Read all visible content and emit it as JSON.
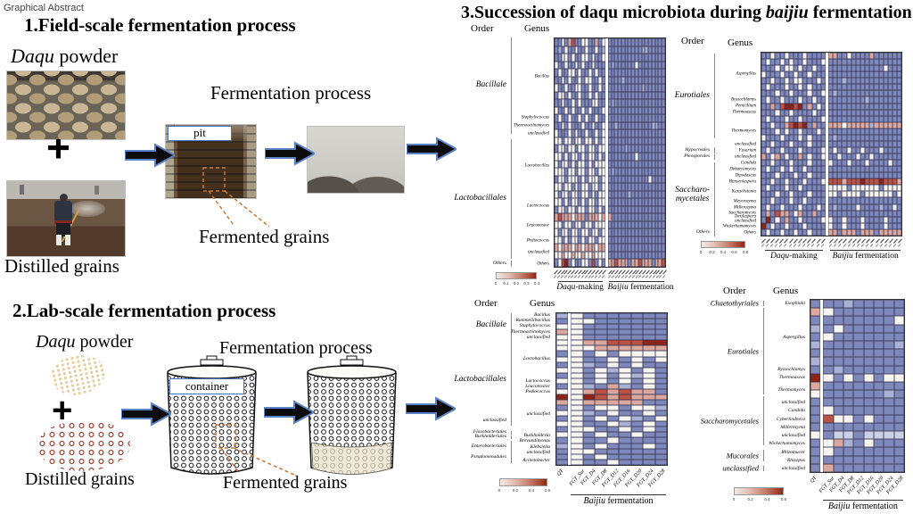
{
  "page_label": "Graphical Abstract",
  "colors": {
    "arrow_outline": "#5b83c8",
    "dashed_annotation": "#c8793a",
    "label_box_border": "#4a76b8",
    "heatmap_blue": "#7e88bb",
    "heatmap_red": "#bb5243"
  },
  "field_section": {
    "heading": "1.Field-scale fermentation process",
    "daqu_italic": "Daqu",
    "daqu_rest": " powder",
    "plus": "+",
    "distilled": "Distilled grains",
    "fermentation": "Fermentation process",
    "pit": "pit",
    "fermented": "Fermented grains"
  },
  "lab_section": {
    "heading": "2.Lab-scale fermentation process",
    "daqu_italic": "Daqu",
    "daqu_rest": " powder",
    "plus": "+",
    "distilled": "Distilled grains",
    "fermentation": "Fermentation process",
    "container": "container",
    "fermented": "Fermented grains"
  },
  "succession": {
    "prefix": "3.Succession of daqu microbiota during ",
    "italic": "baijiu",
    "suffix": " fermentation"
  },
  "palette": {
    "b": "#7e88bb",
    "l": "#a9b1d4",
    "e": "#ccd1e5",
    "w": "#f7f5f0",
    "p": "#dca89e",
    "r": "#bb5243",
    "d": "#8f2315"
  },
  "chart_data": [
    {
      "type": "heatmap",
      "name": "field-scale bacterial community",
      "order_header": "Order",
      "genus_header": "Genus",
      "cols": 32,
      "gap_after": 15,
      "orders": [
        {
          "text": "Bacillale",
          "at": 0.21,
          "span": 0.42
        },
        {
          "text": "Lactobacillales",
          "at": 0.7,
          "span": 0.52
        },
        {
          "text": "Others",
          "at": 0.983,
          "span": 0.03,
          "small": true
        }
      ],
      "genus": [
        {
          "text": "Bacillus",
          "at": 0.17
        },
        {
          "text": "Staphylococcus",
          "at": 0.35
        },
        {
          "text": "Thermoactinomyces",
          "at": 0.383
        },
        {
          "text": "unclassified",
          "at": 0.417
        },
        {
          "text": "Lactobacillus",
          "at": 0.56
        },
        {
          "text": "Lactococcus",
          "at": 0.733
        },
        {
          "text": "Leuconostoc",
          "at": 0.817
        },
        {
          "text": "Pediococcus",
          "at": 0.883
        },
        {
          "text": "unclassified",
          "at": 0.933
        },
        {
          "text": "Others",
          "at": 0.983
        }
      ],
      "rows": [
        "bbwbprbbwwbbpbwbbbbbbbbbbbbbbbbb",
        "blbwbbwbbwbbwblbbbbbbbbbbllbbbbb",
        "bbwwbwbbwwbwbbwbbbbbbbbbbbbbbbbb",
        "wbbwbbwbwbbwbbbblbbbbbbwbbbbbbbb",
        "bwbbwwbwbbwbwbbbbbbbbbbbbbbbbbbb",
        "bbwbwbbwbwwbbwbbbbblbbbbbbbbbbbb",
        "wbbwbbwwbbwbbwbbbbbbbbbbblbbbbbb",
        "bwwbwbbwbbwbwbbbbbbbbbbbbbbbbbbb",
        "bbwbbwbwbbbwwbbblbbbbbbbbbbbbbbb",
        "wbbwbwbbwbwbbbwbbbbbbbbbbbbbbbbb",
        "bwbbwbbwbwbbwbbbbbbbbbbbbbbbbbbb",
        "bbwbwbbbwbbwbbwbblbbbbbbbbbbllbb",
        "wbbbwbwbbwbbwbwbbbbbbbbbbbbbbbbb",
        "wwbwwbwwbwwbwbwbbbbbbbbbbbbbbbbb",
        "bwwbwwbwwbwwbwwbbbbblbbbbbbbbbbb",
        "wwbwbwwbwbwwbwbbbbbbbbbwbbbbbbbb",
        "wbwwbwbwwbwbwwwbbbbbbbbbbbbbbbbb",
        "wwwbwwbwwbwwbwwblbbbbbbbbbbbbbbb",
        "bwwbwwwbwbwwwbwbbbbbbbbbbbbwbbbb",
        "wwbwwbwbwwbwwbwbbbbbbbbbbbbbbbbb",
        "wbwwbwwbwwbwbwwbbbbbblbbbbbbbbbb",
        "wwbwbwwbwbwwbwwbbbbbbbbbbbbbbbbb",
        "bwwbwwbwwbwwbwbbbbbbbbbbbbbbbbbb",
        "prpppwpppbpppwppbbbbbbbbbbbbbbbb",
        "wwbwwbwwbwwbwwwbbbbbbbbbbbbbbbbb",
        "wbwwbwwbwwbwwbwbbbbbbbbbbbbbbbbb",
        "wwbwbwwbwbwwbwwbbbbbbbbbbbbbbbbb",
        "pwpppwppwpppwppbbbbbbbbbbbbbbbbb",
        "wwpwwpwwpwwpwwwbbbbbbbbbbbbbbbbb",
        "bwrdbwbbwwbrbwbpprpppbpprpppbppr"
      ],
      "colorbar_ticks": [
        "0",
        "0.1",
        "0.2",
        "0.3",
        "0.4"
      ],
      "xticks": [],
      "xgroups": [
        {
          "italic": "Daqu",
          "rest": "-making",
          "from": 0.02,
          "to": 0.45
        },
        {
          "italic": "Baijiu",
          "rest": " fermentation",
          "from": 0.48,
          "to": 1.0
        }
      ]
    },
    {
      "type": "heatmap",
      "name": "field-scale fungal community",
      "order_header": "Order",
      "genus_header": "Genus",
      "cols": 30,
      "gap_after": 14,
      "orders": [
        {
          "text": "Eurotiales",
          "at": 0.24,
          "span": 0.46
        },
        {
          "text": "Hypocreales",
          "at": 0.534,
          "span": 0.03,
          "small": true
        },
        {
          "text": "Pleosporales",
          "at": 0.569,
          "span": 0.03,
          "small": true
        },
        {
          "text": "Saccharo-\nmycetales",
          "at": 0.78,
          "span": 0.36
        },
        {
          "text": "Others",
          "at": 0.983,
          "span": 0.03,
          "small": true
        }
      ],
      "genus": [
        {
          "text": "Aspergillus",
          "at": 0.12
        },
        {
          "text": "Byssochlamys",
          "at": 0.259
        },
        {
          "text": "Penicillium",
          "at": 0.293
        },
        {
          "text": "Thermoascus",
          "at": 0.328
        },
        {
          "text": "Thermomyces",
          "at": 0.431
        },
        {
          "text": "unclassified",
          "at": 0.5
        },
        {
          "text": "Fusarium",
          "at": 0.534
        },
        {
          "text": "unclassified",
          "at": 0.569
        },
        {
          "text": "Candida",
          "at": 0.603
        },
        {
          "text": "Debaryomyces",
          "at": 0.638
        },
        {
          "text": "Dipodascus",
          "at": 0.672
        },
        {
          "text": "Hanseniaspora",
          "at": 0.707
        },
        {
          "text": "Kazachstania",
          "at": 0.759
        },
        {
          "text": "Meyerozyma",
          "at": 0.81
        },
        {
          "text": "Millerozyma",
          "at": 0.845
        },
        {
          "text": "Saccharomyces",
          "at": 0.872
        },
        {
          "text": "Torulaspora",
          "at": 0.895
        },
        {
          "text": "unclassified",
          "at": 0.917
        },
        {
          "text": "Wickerhamomyces",
          "at": 0.948
        },
        {
          "text": "Others",
          "at": 0.983
        }
      ],
      "rows": [
        "bbwbbwbbbwbbbbppbbwbbbbpbbbbbb",
        "bwbbwbwbbwbbbwbbbbbbbbbbbbbbbb",
        "bbbwbwwbwbbwbbbbbbbbbbbbbbwbbb",
        "wbbbwbbwbbwbbbbbbbbbbbbbbbbbbb",
        "bbwbbwbwwbbbwbbbblbbbbbbbbbbbb",
        "bwbbbwbbwbwbbbbbbbbbbbbbbbbbbb",
        "bbbwbbwbbbwbbwblbbbbbbbbbbbbbb",
        "bwbbwbbbwbbwbbbbbbbbbblbbbbbbb",
        "bbpbrddrdbpbwbbbbbbbbbbbbbbbbb",
        "bbbwbbwbbbbwbbbbbbbbbbbbbbbbbb",
        "bwbbbwbbwbbbbwbbbbbbbbbbbbbbbb",
        "bbwbbprdrdbpbbpppwppppplpppppp",
        "bbbwbwbbwbbbwbbbbbbbbbbbbbbbbb",
        "wbbbwbbbwbwbbbblbbbbbbbbbbbbbb",
        "bbwbbbwbbbwbbbbbbbbbbbbbbbbbbb",
        "bwbbwbbbwbbbbwbwbbwbbwbbbwbbbb",
        "pbwpbwbbpbwbbwbbwbbbwbbwbbbbbb",
        "bbwbbbwbbbwbbbwbbbwbbbwbbbbwbb",
        "bwbbwbwbbwbbbbbbbbbbbbbbbbbbbb",
        "bbbwbbbwbbwbbbbbbbbbbbbbbbbbbb",
        "bbwbbwbbbwbbbwrrrprrrdrrrdrrrp",
        "bwbbbwbbwbbbbbwwwwbwwwwwwbwwww",
        "bbbwbbwbbbwbbbwwbwwwwbwwwwwwbw",
        "bbwbbbwbbwbbbbbbbbbbbbbbbbbbbb",
        "bwbbwbbbwbbbwbblbbbbwbbbblbbwb",
        "bpbrppbwpbbpbbbbbbbbbbbbbbbbbb",
        "bdbwbpbbwbbbbwwbbwbbbwbbbbwbbb",
        "dbwbbwbbbwbbbbwbbwbbbwbbbbwbbb",
        "bwbbwbbwbbwbbbppbpppbpppbppppp"
      ],
      "colorbar_ticks": [
        "0",
        "0.2",
        "0.4",
        "0.6",
        "0.8"
      ],
      "xticks": [],
      "xgroups": [
        {
          "italic": "Daqu",
          "rest": "-making",
          "from": 0.02,
          "to": 0.45
        },
        {
          "italic": "Baijiu",
          "rest": " fermentation",
          "from": 0.48,
          "to": 1.0
        }
      ]
    },
    {
      "type": "heatmap",
      "name": "lab-scale bacterial community",
      "order_header": "Order",
      "genus_header": "Genus",
      "cols": 9,
      "gap_after": 1,
      "orders": [
        {
          "text": "Bacillale",
          "at": 0.09,
          "span": 0.17
        },
        {
          "text": "Lactobacillales",
          "at": 0.44,
          "span": 0.55
        },
        {
          "text": "unclassified",
          "at": 0.71,
          "span": 0.06,
          "small": true
        },
        {
          "text": "Flavobacteriales",
          "at": 0.785,
          "span": 0.025,
          "small": true
        },
        {
          "text": "Burkholderiales",
          "at": 0.815,
          "span": 0.025,
          "small": true
        },
        {
          "text": "Enterobacteriales",
          "at": 0.875,
          "span": 0.08,
          "small": true
        },
        {
          "text": "Pseudomonadales",
          "at": 0.95,
          "span": 0.07,
          "small": true
        }
      ],
      "genus": [
        {
          "text": "Bacillus",
          "at": 0.018
        },
        {
          "text": "Rummeliibacillus",
          "at": 0.054
        },
        {
          "text": "Staphylococcus",
          "at": 0.089
        },
        {
          "text": "Thermoactinomyces",
          "at": 0.125
        },
        {
          "text": "unclassified",
          "at": 0.161
        },
        {
          "text": "Lactobacillus",
          "at": 0.3
        },
        {
          "text": "Lactococcus",
          "at": 0.446
        },
        {
          "text": "Leuconostoc",
          "at": 0.482
        },
        {
          "text": "Pediococcus",
          "at": 0.518
        },
        {
          "text": "unclassified",
          "at": 0.66
        },
        {
          "text": "Burkholderia",
          "at": 0.8
        },
        {
          "text": "Brevundimonas",
          "at": 0.839
        },
        {
          "text": "Klebsiella",
          "at": 0.875
        },
        {
          "text": "unclassified",
          "at": 0.911
        },
        {
          "text": "Acinetobacter",
          "at": 0.964
        }
      ],
      "rows": [
        "lwbbbbbbb",
        "bwwbbbbbb",
        "wwbbbbbbb",
        "pwbbbbbbb",
        "wwbbbbbbb",
        "wwpprrrdd",
        "wwwpppppp",
        "bwbwbwwww",
        "wwbbwbwbw",
        "bwlbwbwbb",
        "wwbwlwbwb",
        "bwbwbwlwb",
        "wwbwbwbwb",
        "bwlbplbwb",
        "wwprprppb",
        "dwdrprppp",
        "pwpppppbb",
        "bwbwwbwwl",
        "wwlbwbbwb",
        "bwbwbwlbw",
        "wwbbwlbwb",
        "bwwbbwbwb",
        "wwbwbbwbb",
        "bwbbwbbbb",
        "lwbwbbbwb",
        "bwwbbbbbb",
        "bwbwbbbbb",
        "bwbbwbbbb"
      ],
      "colorbar_ticks": [
        "0",
        "0.2",
        "0.4",
        "0.6"
      ],
      "xticks": [
        "QT",
        "FGT_Sur",
        "FGT_D4",
        "FGT_D8",
        "FGT_D12",
        "FGT_D16",
        "FGT_D20",
        "FGT_D24",
        "FGT_D28"
      ],
      "xgroups": [
        {
          "italic": "Baijiu",
          "rest": " fermentation",
          "from": 0.12,
          "to": 1.0
        }
      ]
    },
    {
      "type": "heatmap",
      "name": "lab-scale fungal community",
      "order_header": "Order",
      "genus_header": "Genus",
      "cols": 9,
      "gap_after": 1,
      "orders": [
        {
          "text": "Chaetothyriales",
          "at": 0.024,
          "span": 0.03,
          "small": true
        },
        {
          "text": "Eurotiales",
          "at": 0.3,
          "span": 0.5
        },
        {
          "text": "Saccharomycetales",
          "at": 0.7,
          "span": 0.28
        },
        {
          "text": "Mucorales",
          "at": 0.9,
          "span": 0.07,
          "small": true
        },
        {
          "text": "unclassified",
          "at": 0.976,
          "span": 0.03,
          "small": true
        }
      ],
      "genus": [
        {
          "text": "Exophiala",
          "at": 0.024
        },
        {
          "text": "Aspergillus",
          "at": 0.22
        },
        {
          "text": "Byssochlamys",
          "at": 0.405
        },
        {
          "text": "Thermoascus",
          "at": 0.452
        },
        {
          "text": "Thermomyces",
          "at": 0.524
        },
        {
          "text": "unclassified",
          "at": 0.595
        },
        {
          "text": "Candida",
          "at": 0.643
        },
        {
          "text": "Cyberlindnera",
          "at": 0.69
        },
        {
          "text": "Millerozyma",
          "at": 0.738
        },
        {
          "text": "unclassified",
          "at": 0.786
        },
        {
          "text": "Wickerhamomyces",
          "at": 0.833
        },
        {
          "text": "Rhizomucor",
          "at": 0.881
        },
        {
          "text": "Rhizopus",
          "at": 0.928
        },
        {
          "text": "unclassified",
          "at": 0.976
        }
      ],
      "rows": [
        "bbblbbbbb",
        "pwbbbbbbb",
        "bbbbbbbbw",
        "lbwbbbbbb",
        "bwbbbbbbb",
        "lbbbbbbbl",
        "bbbbbbbbb",
        "lbbbbbbbb",
        "bblbbbbbb",
        "dwbwbwbww",
        "pbbbbbbbb",
        "wbbbbbblb",
        "bbbbbbbbb",
        "bwbbbbbbb",
        "brwwbwbbb",
        "bbbbbbbbb",
        "wbeebeeee",
        "bwplbwbbb",
        "bwbbbbbbb",
        "bbbbbbbbb",
        "bpbbbbbbb"
      ],
      "colorbar_ticks": [
        "0",
        "0.2",
        "0.4",
        "0.6"
      ],
      "xticks": [
        "QT",
        "FGT_Sur",
        "FGT_D4",
        "FGT_D8",
        "FGT_D12",
        "FGT_D16",
        "FGT_D20",
        "FGT_D24",
        "FGT_D28"
      ],
      "xgroups": [
        {
          "italic": "Baijiu",
          "rest": " fermentation",
          "from": 0.12,
          "to": 1.0
        }
      ]
    }
  ]
}
